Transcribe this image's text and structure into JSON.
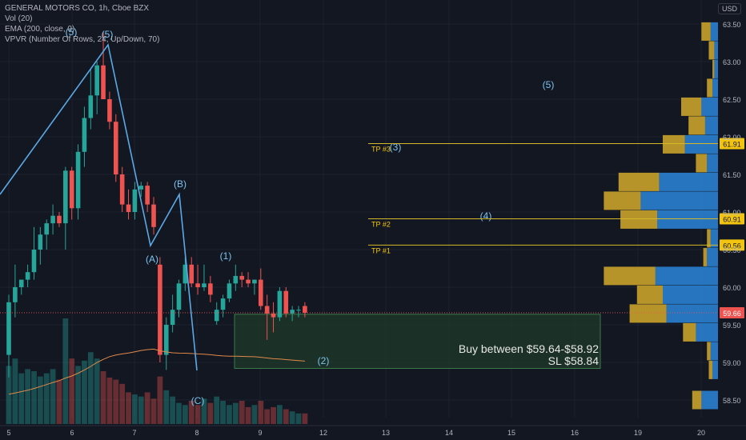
{
  "header": {
    "title": "GENERAL MOTORS CO, 1h, Cboe BZX",
    "indicators": [
      "Vol (20)",
      "EMA (200, close, 0)",
      "VPVR (Number Of Rows, 24, Up/Down, 70)"
    ],
    "currency_button": "USD"
  },
  "annotations": {
    "buy_text": "Buy between $59.64-$58.92",
    "sl_text": "SL $58.84",
    "tp_labels": [
      "TP #1",
      "TP #2",
      "TP #3"
    ],
    "wave_labels": [
      "(5)",
      "(5)",
      "(A)",
      "(B)",
      "(C)",
      "(1)",
      "(2)",
      "(3)",
      "(4)",
      "(5)"
    ]
  },
  "colors": {
    "background": "#131722",
    "up": "#26a69a",
    "down": "#ef5350",
    "wave_line": "#5aa9e6",
    "tp_line": "#d4b82a",
    "buy_zone": "#1f3a2a",
    "vpvr_up": "#2a7fd0",
    "vpvr_down": "#c9a22a",
    "ema": "#e0894a",
    "price_badge": "#ef5350",
    "tp_badge": "#f2c40f"
  },
  "chart_data": {
    "type": "candlestick",
    "title": "GENERAL MOTORS CO, 1h, Cboe BZX",
    "y_range": [
      58.4,
      63.8
    ],
    "y_ticks": [
      "63.50",
      "63.00",
      "62.50",
      "62.00",
      "61.50",
      "61.00",
      "60.50",
      "60.00",
      "59.50",
      "59.00",
      "58.50"
    ],
    "x_ticks": [
      "5",
      "6",
      "7",
      "8",
      "9",
      "12",
      "13",
      "14",
      "15",
      "16",
      "19",
      "20"
    ],
    "current_price": "59.66",
    "tp_levels": [
      {
        "label": "TP #1",
        "price": "60.56"
      },
      {
        "label": "TP #2",
        "price": "60.91"
      },
      {
        "label": "TP #3",
        "price": "61.91"
      }
    ],
    "buy_zone": {
      "high": 59.64,
      "low": 58.92,
      "stop_loss": 58.84
    },
    "candles": [
      {
        "o": 59.1,
        "h": 59.9,
        "l": 58.8,
        "c": 59.8
      },
      {
        "o": 59.8,
        "h": 60.3,
        "l": 59.6,
        "c": 60.0
      },
      {
        "o": 60.0,
        "h": 60.1,
        "l": 59.9,
        "c": 60.1
      },
      {
        "o": 60.1,
        "h": 60.3,
        "l": 60.0,
        "c": 60.2
      },
      {
        "o": 60.2,
        "h": 60.8,
        "l": 60.1,
        "c": 60.5
      },
      {
        "o": 60.5,
        "h": 60.8,
        "l": 60.3,
        "c": 60.7
      },
      {
        "o": 60.7,
        "h": 60.9,
        "l": 60.5,
        "c": 60.85
      },
      {
        "o": 60.85,
        "h": 61.1,
        "l": 60.7,
        "c": 60.95
      },
      {
        "o": 60.95,
        "h": 61.0,
        "l": 60.8,
        "c": 60.85
      },
      {
        "o": 60.85,
        "h": 61.6,
        "l": 60.5,
        "c": 61.55
      },
      {
        "o": 61.55,
        "h": 61.6,
        "l": 60.9,
        "c": 61.05
      },
      {
        "o": 61.05,
        "h": 61.9,
        "l": 60.9,
        "c": 61.8
      },
      {
        "o": 61.8,
        "h": 62.4,
        "l": 61.6,
        "c": 62.25
      },
      {
        "o": 62.25,
        "h": 62.9,
        "l": 62.1,
        "c": 62.55
      },
      {
        "o": 62.55,
        "h": 63.0,
        "l": 62.3,
        "c": 62.95
      },
      {
        "o": 62.95,
        "h": 63.4,
        "l": 62.5,
        "c": 62.5
      },
      {
        "o": 62.5,
        "h": 62.6,
        "l": 62.1,
        "c": 62.2
      },
      {
        "o": 62.2,
        "h": 62.3,
        "l": 61.4,
        "c": 61.5
      },
      {
        "o": 61.5,
        "h": 61.6,
        "l": 61.0,
        "c": 61.1
      },
      {
        "o": 61.1,
        "h": 61.3,
        "l": 60.9,
        "c": 61.0
      },
      {
        "o": 61.0,
        "h": 61.4,
        "l": 60.9,
        "c": 61.3
      },
      {
        "o": 61.3,
        "h": 61.4,
        "l": 61.2,
        "c": 61.35
      },
      {
        "o": 61.35,
        "h": 61.4,
        "l": 61.0,
        "c": 61.1
      },
      {
        "o": 61.1,
        "h": 61.2,
        "l": 60.7,
        "c": 60.8
      },
      {
        "o": 60.3,
        "h": 60.4,
        "l": 59.0,
        "c": 59.1
      },
      {
        "o": 59.1,
        "h": 59.6,
        "l": 58.9,
        "c": 59.5
      },
      {
        "o": 59.5,
        "h": 59.9,
        "l": 59.4,
        "c": 59.7
      },
      {
        "o": 59.7,
        "h": 60.1,
        "l": 59.6,
        "c": 60.05
      },
      {
        "o": 60.05,
        "h": 60.4,
        "l": 59.95,
        "c": 60.3
      },
      {
        "o": 60.3,
        "h": 60.4,
        "l": 60.0,
        "c": 60.05
      },
      {
        "o": 60.05,
        "h": 60.3,
        "l": 59.9,
        "c": 60.0
      },
      {
        "o": 60.0,
        "h": 60.3,
        "l": 59.95,
        "c": 60.05
      },
      {
        "o": 60.05,
        "h": 60.15,
        "l": 59.8,
        "c": 59.9
      },
      {
        "o": 59.55,
        "h": 59.8,
        "l": 59.5,
        "c": 59.7
      },
      {
        "o": 59.7,
        "h": 59.9,
        "l": 59.6,
        "c": 59.85
      },
      {
        "o": 59.85,
        "h": 60.1,
        "l": 59.8,
        "c": 60.05
      },
      {
        "o": 60.05,
        "h": 60.3,
        "l": 59.95,
        "c": 60.15
      },
      {
        "o": 60.15,
        "h": 60.2,
        "l": 60.0,
        "c": 60.1
      },
      {
        "o": 60.1,
        "h": 60.2,
        "l": 60.0,
        "c": 60.05
      },
      {
        "o": 60.05,
        "h": 60.1,
        "l": 59.9,
        "c": 60.1
      },
      {
        "o": 60.1,
        "h": 60.25,
        "l": 59.7,
        "c": 59.75
      },
      {
        "o": 59.75,
        "h": 59.9,
        "l": 59.3,
        "c": 59.65
      },
      {
        "o": 59.65,
        "h": 59.8,
        "l": 59.4,
        "c": 59.6
      },
      {
        "o": 59.6,
        "h": 60.0,
        "l": 59.55,
        "c": 59.95
      },
      {
        "o": 59.95,
        "h": 60.0,
        "l": 59.6,
        "c": 59.65
      },
      {
        "o": 59.65,
        "h": 59.75,
        "l": 59.55,
        "c": 59.7
      },
      {
        "o": 59.7,
        "h": 59.75,
        "l": 59.6,
        "c": 59.7
      },
      {
        "o": 59.75,
        "h": 59.8,
        "l": 59.6,
        "c": 59.66
      }
    ],
    "volumes": [
      0.55,
      0.62,
      0.48,
      0.52,
      0.5,
      0.45,
      0.48,
      0.52,
      0.42,
      1.0,
      0.62,
      0.55,
      0.6,
      0.68,
      0.62,
      0.5,
      0.44,
      0.42,
      0.38,
      0.3,
      0.28,
      0.26,
      0.3,
      0.24,
      0.45,
      0.32,
      0.26,
      0.2,
      0.18,
      0.22,
      0.18,
      0.24,
      0.2,
      0.26,
      0.22,
      0.18,
      0.2,
      0.22,
      0.16,
      0.18,
      0.22,
      0.14,
      0.16,
      0.18,
      0.14,
      0.12,
      0.1,
      0.1
    ],
    "vpvr": [
      {
        "price": 63.4,
        "up": 0.04,
        "down": 0.05
      },
      {
        "price": 63.15,
        "up": 0.02,
        "down": 0.03
      },
      {
        "price": 62.9,
        "up": 0.02,
        "down": 0.01
      },
      {
        "price": 62.65,
        "up": 0.03,
        "down": 0.03
      },
      {
        "price": 62.4,
        "up": 0.09,
        "down": 0.11
      },
      {
        "price": 62.15,
        "up": 0.07,
        "down": 0.09
      },
      {
        "price": 61.9,
        "up": 0.18,
        "down": 0.12
      },
      {
        "price": 61.65,
        "up": 0.06,
        "down": 0.06
      },
      {
        "price": 61.4,
        "up": 0.32,
        "down": 0.22
      },
      {
        "price": 61.15,
        "up": 0.42,
        "down": 0.2
      },
      {
        "price": 60.9,
        "up": 0.33,
        "down": 0.2
      },
      {
        "price": 60.65,
        "up": 0.04,
        "down": 0.02
      },
      {
        "price": 60.4,
        "up": 0.06,
        "down": 0.02
      },
      {
        "price": 60.15,
        "up": 0.34,
        "down": 0.28
      },
      {
        "price": 59.9,
        "up": 0.3,
        "down": 0.14
      },
      {
        "price": 59.65,
        "up": 0.28,
        "down": 0.2
      },
      {
        "price": 59.4,
        "up": 0.12,
        "down": 0.07
      },
      {
        "price": 59.15,
        "up": 0.04,
        "down": 0.02
      },
      {
        "price": 58.9,
        "up": 0.03,
        "down": 0.02
      },
      {
        "price": 58.5,
        "up": 0.09,
        "down": 0.05
      }
    ]
  }
}
